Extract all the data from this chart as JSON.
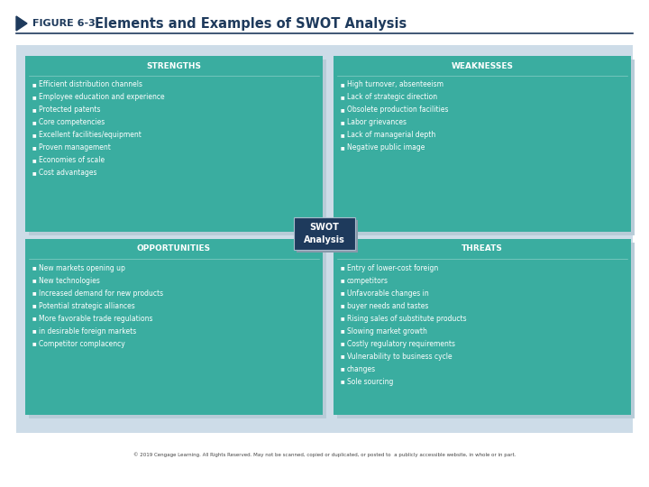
{
  "title_figure": "FIGURE 6-3",
  "title_text": "Elements and Examples of SWOT Analysis",
  "bg_color": "#cddce8",
  "box_color": "#3aada0",
  "center_box_color": "#1e3a5c",
  "text_color": "#ffffff",
  "shadow_color": "#b8ccd8",
  "strengths_title": "STRENGTHS",
  "strengths_items": [
    "Efficient distribution channels",
    "Employee education and experience",
    "Protected patents",
    "Core competencies",
    "Excellent facilities/equipment",
    "Proven management",
    "Economies of scale",
    "Cost advantages"
  ],
  "weaknesses_title": "WEAKNESSES",
  "weaknesses_items": [
    "High turnover, absenteeism",
    "Lack of strategic direction",
    "Obsolete production facilities",
    "Labor grievances",
    "Lack of managerial depth",
    "Negative public image"
  ],
  "opportunities_title": "OPPORTUNITIES",
  "opportunities_items": [
    "New markets opening up",
    "New technologies",
    "Increased demand for new products",
    "Potential strategic alliances",
    "More favorable trade regulations",
    "in desirable foreign markets",
    "Competitor complacency"
  ],
  "threats_title": "THREATS",
  "threats_items": [
    "Entry of lower-cost foreign",
    "competitors",
    "Unfavorable changes in",
    "buyer needs and tastes",
    "Rising sales of substitute products",
    "Slowing market growth",
    "Costly regulatory requirements",
    "Vulnerability to business cycle",
    "changes",
    "Sole sourcing"
  ],
  "center_label": "SWOT\nAnalysis",
  "footer": "© 2019 Cengage Learning. All Rights Reserved. May not be scanned, copied or duplicated, or posted to  a publicly accessible website, in whole or in part.",
  "title_color": "#1e3a5c",
  "line_color": "#1e3a5c"
}
